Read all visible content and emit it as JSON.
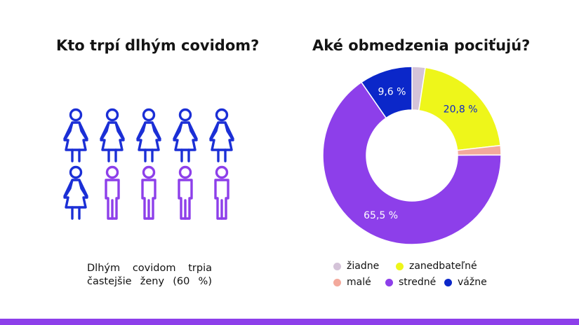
{
  "left": {
    "title": "Kto trpí dlhým covidom?",
    "caption_line1": "Dlhým covidom trpia",
    "caption_line2": "častejšie ženy (60 %)",
    "figures": [
      "woman",
      "woman",
      "woman",
      "woman",
      "woman",
      "woman",
      "man",
      "man",
      "man",
      "man"
    ],
    "colors": {
      "woman": "#1b2fd6",
      "man": "#8d3fea"
    }
  },
  "chart_data": {
    "type": "pie",
    "title": "Aké obmedzenia pociťujú?",
    "donut": true,
    "slices": [
      {
        "label": "žiadne",
        "value": 2.4,
        "color": "#d4c3d8",
        "value_label": ""
      },
      {
        "label": "zanedbateľné",
        "value": 20.8,
        "color": "#eef61a",
        "value_label": "20,8 %"
      },
      {
        "label": "malé",
        "value": 1.7,
        "color": "#f3a99c",
        "value_label": ""
      },
      {
        "label": "stredné",
        "value": 65.5,
        "color": "#8d3fea",
        "value_label": "65,5 %"
      },
      {
        "label": "vážne",
        "value": 9.6,
        "color": "#0b27c9",
        "value_label": "9,6 %"
      }
    ],
    "label_colors": {
      "20,8 %": "#0b27c9",
      "65,5 %": "#ffffff",
      "9,6 %": "#ffffff"
    }
  },
  "legend": {
    "row1": [
      {
        "label": "žiadne",
        "color": "#d4c3d8"
      },
      {
        "label": "zanedbateľné",
        "color": "#eef61a"
      }
    ],
    "row2": [
      {
        "label": "malé",
        "color": "#f3a99c"
      },
      {
        "label": "stredné",
        "color": "#8d3fea"
      },
      {
        "label": "vážne",
        "color": "#0b27c9"
      }
    ]
  },
  "accent": "#8d3fea"
}
